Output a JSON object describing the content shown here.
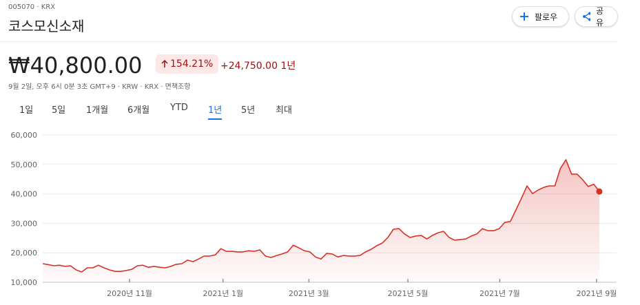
{
  "header": {
    "ticker": "005070 · KRX",
    "name": "코스모신소재",
    "follow": "팔로우",
    "share": "공유",
    "price": "₩40,800.00",
    "change_pct": "154.21%",
    "change": "+24,750.00",
    "period": "1년",
    "meta": "9월 2일, 오후 6시 0분 3초 GMT+9 · KRW · KRX · 면책조항"
  },
  "tabs": {
    "labels": [
      "1일",
      "5일",
      "1개월",
      "6개월",
      "YTD",
      "1년",
      "5년",
      "최대"
    ],
    "selected": 5
  },
  "chart_data": {
    "type": "line",
    "color": "#d93025",
    "values": [
      16300,
      16000,
      15600,
      15800,
      15400,
      15600,
      14200,
      13500,
      14900,
      14900,
      15800,
      14900,
      14200,
      13700,
      13700,
      14000,
      14400,
      15600,
      15800,
      15100,
      15400,
      15100,
      14900,
      15400,
      16100,
      16300,
      17500,
      17000,
      17900,
      18900,
      18900,
      19300,
      21400,
      20500,
      20500,
      20300,
      20300,
      20700,
      20500,
      21000,
      18900,
      18400,
      19100,
      19600,
      20300,
      22600,
      21700,
      20700,
      20300,
      18600,
      17900,
      19800,
      19600,
      18600,
      19100,
      18900,
      18900,
      19100,
      20300,
      21200,
      22400,
      23300,
      25200,
      28000,
      28200,
      26400,
      25200,
      25700,
      25900,
      24700,
      25900,
      26800,
      27300,
      25200,
      24300,
      24500,
      24700,
      25700,
      26400,
      28200,
      27500,
      27500,
      28200,
      30300,
      30600,
      34500,
      38500,
      42700,
      40100,
      41300,
      42200,
      42700,
      42700,
      48600,
      51600,
      46700,
      46700,
      44800,
      42500,
      43300,
      40800
    ],
    "xlim": [
      0,
      100
    ],
    "xticks": [
      {
        "value": 15.6,
        "label": "2020년 11월"
      },
      {
        "value": 32.4,
        "label": "2021년 1월"
      },
      {
        "value": 47.8,
        "label": "2021년 3월"
      },
      {
        "value": 65.6,
        "label": "2021년 5월"
      },
      {
        "value": 82.1,
        "label": "2021년 7월"
      },
      {
        "value": 99.5,
        "label": "2021년 9월"
      }
    ],
    "ylim": [
      10000,
      60000
    ],
    "yticks": [
      {
        "value": 10000,
        "label": "10,000"
      },
      {
        "value": 20000,
        "label": "20,000"
      },
      {
        "value": 30000,
        "label": "30,000"
      },
      {
        "value": 40000,
        "label": "40,000"
      },
      {
        "value": 50000,
        "label": "50,000"
      },
      {
        "value": 60000,
        "label": "60,000"
      }
    ],
    "grid": true
  }
}
